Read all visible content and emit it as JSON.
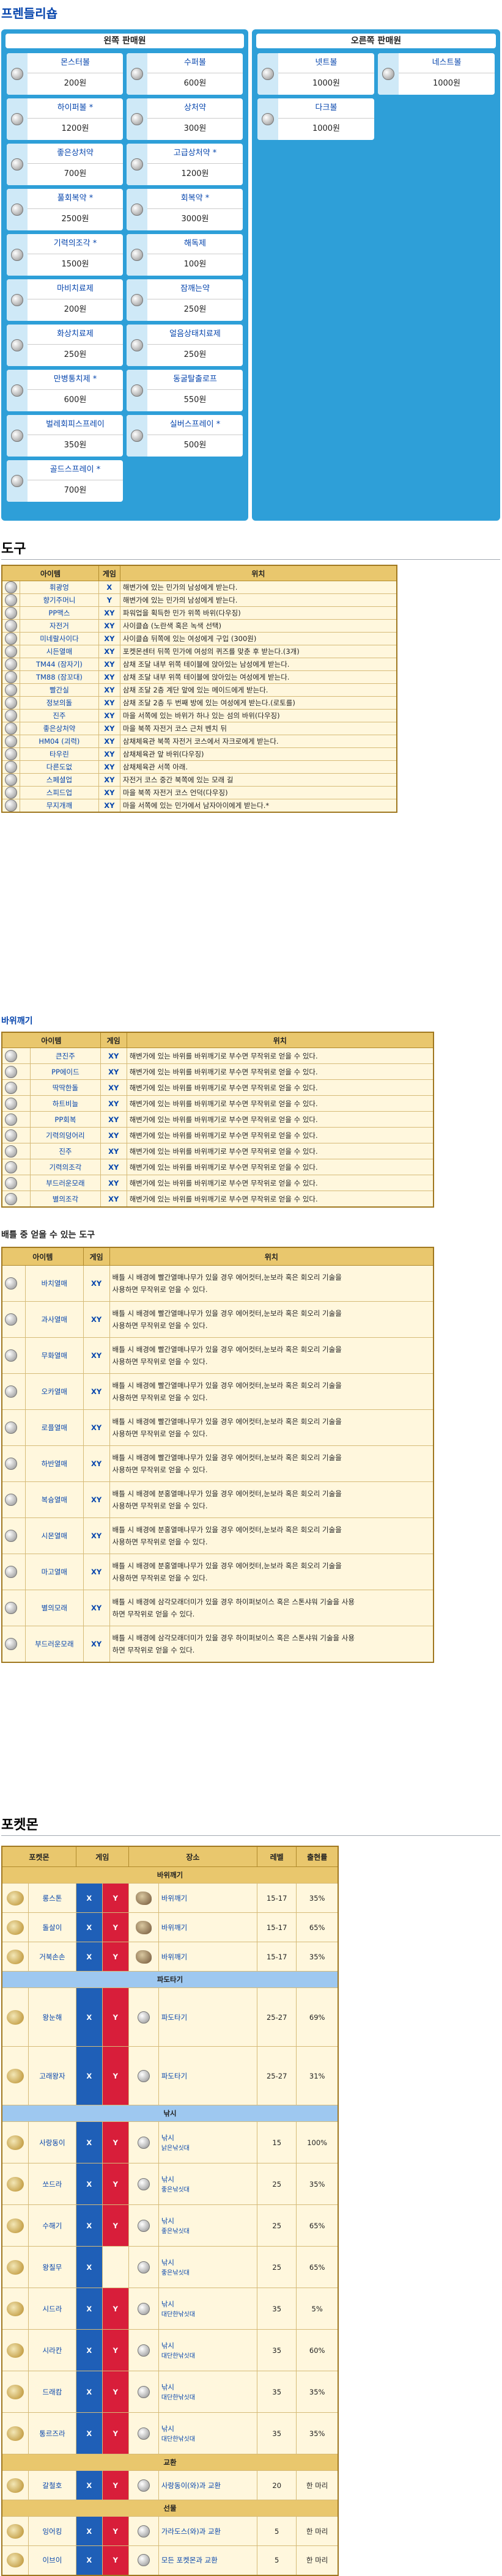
{
  "headings": {
    "shop": "프렌들리숍",
    "tools": "도구",
    "smash": "바위깨기",
    "berries": "배틀 중 얻을 수 있는 도구",
    "pokemon": "포켓몬"
  },
  "shop": {
    "left_title": "왼쪽 판매원",
    "right_title": "오른쪽 판매원",
    "left_items": [
      {
        "name": "몬스터볼",
        "price": "200원"
      },
      {
        "name": "수퍼볼",
        "price": "600원"
      },
      {
        "name": "하이퍼볼 *",
        "price": "1200원"
      },
      {
        "name": "상처약",
        "price": "300원"
      },
      {
        "name": "좋은상처약",
        "price": "700원"
      },
      {
        "name": "고급상처약 *",
        "price": "1200원"
      },
      {
        "name": "풀회복약 *",
        "price": "2500원"
      },
      {
        "name": "회복약 *",
        "price": "3000원"
      },
      {
        "name": "기력의조각 *",
        "price": "1500원"
      },
      {
        "name": "해독제",
        "price": "100원"
      },
      {
        "name": "마비치료제",
        "price": "200원"
      },
      {
        "name": "잠깨는약",
        "price": "250원"
      },
      {
        "name": "화상치료제",
        "price": "250원"
      },
      {
        "name": "얼음상태치료제",
        "price": "250원"
      },
      {
        "name": "만병통치제 *",
        "price": "600원"
      },
      {
        "name": "동굴탈출로프",
        "price": "550원"
      },
      {
        "name": "벌레회피스프레이",
        "price": "350원"
      },
      {
        "name": "실버스프레이 *",
        "price": "500원"
      },
      {
        "name": "골드스프레이 *",
        "price": "700원"
      }
    ],
    "right_items": [
      {
        "name": "넷트볼",
        "price": "1000원"
      },
      {
        "name": "네스트볼",
        "price": "1000원"
      },
      {
        "name": "다크볼",
        "price": "1000원"
      }
    ]
  },
  "tools": {
    "headers": [
      "아이템",
      "게임",
      "위치"
    ],
    "rows": [
      {
        "name": "휘광엉",
        "game": "X",
        "loc": "해변가에 있는 민가의 남성에게 받는다."
      },
      {
        "name": "향기주머니",
        "game": "Y",
        "loc": "해변가에 있는 민가의 남성에게 받는다."
      },
      {
        "name": "PP맥스",
        "game": "XY",
        "loc": "파워업을 획득한 민가 위쪽 바위(다우징)"
      },
      {
        "name": "자전거",
        "game": "XY",
        "loc": "사이클숍 (노란색 혹은 녹색 선택)"
      },
      {
        "name": "미네랄사이다",
        "game": "XY",
        "loc": "사이클숍 뒤쪽에 있는 여성에게 구입 (300원)"
      },
      {
        "name": "시든열매",
        "game": "XY",
        "loc": "포켓몬센터 뒤쪽 민가에 여성의 퀴즈를 맞춘 후 받는다.(3개)"
      },
      {
        "name": "TM44 (잠자기)",
        "game": "XY",
        "loc": "삼채 조달 내부 위쪽 테이블에 앉아있는 남성에게 받는다."
      },
      {
        "name": "TM88 (잠꼬대)",
        "game": "XY",
        "loc": "삼채 조달 내부 위쪽 테이블에 앉아있는 여성에게 받는다."
      },
      {
        "name": "빨간실",
        "game": "XY",
        "loc": "삼채 조달 2층 계단 앞에 있는 메이드에게 받는다."
      },
      {
        "name": "정보의돌",
        "game": "XY",
        "loc": "삼채 조달 2층 두 번째 방에 있는 여성에게 받는다.(로토를)"
      },
      {
        "name": "진주",
        "game": "XY",
        "loc": "마을 서쪽에 있는 바위가 하나 있는 섬의 바위(다우징)"
      },
      {
        "name": "좋은상처약",
        "game": "XY",
        "loc": "마을 북쪽 자전거 코스 근처 벤치 뒤"
      },
      {
        "name": "HM04 (괴력)",
        "game": "XY",
        "loc": "삼채체육관 북쪽 자전거 코스에서 자크로에게 받는다."
      },
      {
        "name": "타우린",
        "game": "XY",
        "loc": "삼채체육관 앞 바위(다우징)"
      },
      {
        "name": "다른도없",
        "game": "XY",
        "loc": "삼채체육관 서쪽 아래."
      },
      {
        "name": "스페셜업",
        "game": "XY",
        "loc": "자전거 코스 중간 북쪽에 있는 모래 길"
      },
      {
        "name": "스피드업",
        "game": "XY",
        "loc": "마을 북쪽 자전거 코스 언덕(다우징)"
      },
      {
        "name": "무지개깨",
        "game": "XY",
        "loc": "마을 서쪽에 있는 민가에서 남자아이에게 받는다.*"
      }
    ]
  },
  "smash": {
    "headers": [
      "아이템",
      "게임",
      "위치"
    ],
    "rows": [
      {
        "name": "큰진주",
        "game": "XY",
        "loc": "해변가에 있는 바위를 바위깨기로 부수면 무작위로 얻을 수 있다."
      },
      {
        "name": "PP에이드",
        "game": "XY",
        "loc": "해변가에 있는 바위를 바위깨기로 부수면 무작위로 얻을 수 있다."
      },
      {
        "name": "딱딱한돌",
        "game": "XY",
        "loc": "해변가에 있는 바위를 바위깨기로 부수면 무작위로 얻을 수 있다."
      },
      {
        "name": "하트비늘",
        "game": "XY",
        "loc": "해변가에 있는 바위를 바위깨기로 부수면 무작위로 얻을 수 있다."
      },
      {
        "name": "PP회복",
        "game": "XY",
        "loc": "해변가에 있는 바위를 바위깨기로 부수면 무작위로 얻을 수 있다."
      },
      {
        "name": "기력의덩어리",
        "game": "XY",
        "loc": "해변가에 있는 바위를 바위깨기로 부수면 무작위로 얻을 수 있다."
      },
      {
        "name": "진주",
        "game": "XY",
        "loc": "해변가에 있는 바위를 바위깨기로 부수면 무작위로 얻을 수 있다."
      },
      {
        "name": "기력의조각",
        "game": "XY",
        "loc": "해변가에 있는 바위를 바위깨기로 부수면 무작위로 얻을 수 있다."
      },
      {
        "name": "부드러운모래",
        "game": "XY",
        "loc": "해변가에 있는 바위를 바위깨기로 부수면 무작위로 얻을 수 있다."
      },
      {
        "name": "별의조각",
        "game": "XY",
        "loc": "해변가에 있는 바위를 바위깨기로 부수면 무작위로 얻을 수 있다."
      }
    ]
  },
  "berries": {
    "headers": [
      "아이템",
      "게임",
      "위치"
    ],
    "rows": [
      {
        "name": "바치열매",
        "game": "XY",
        "line1": "배틀 시 배경에 빨간열매나무가 있을 경우 에어컷터,눈보라 혹은 회오리 기술을",
        "line2": "사용하면 무작위로 얻을 수 있다."
      },
      {
        "name": "과사열매",
        "game": "XY",
        "line1": "배틀 시 배경에 빨간열매나무가 있을 경우 에어컷터,눈보라 혹은 회오리 기술을",
        "line2": "사용하면 무작위로 얻을 수 있다."
      },
      {
        "name": "무화열매",
        "game": "XY",
        "line1": "배틀 시 배경에 빨간열매나무가 있을 경우 에어컷터,눈보라 혹은 회오리 기술을",
        "line2": "사용하면 무작위로 얻을 수 있다."
      },
      {
        "name": "오카열매",
        "game": "XY",
        "line1": "배틀 시 배경에 빨간열매나무가 있을 경우 에어컷터,눈보라 혹은 회오리 기술을",
        "line2": "사용하면 무작위로 얻을 수 있다."
      },
      {
        "name": "로플열매",
        "game": "XY",
        "line1": "배틀 시 배경에 빨간열매나무가 있을 경우 에어컷터,눈보라 혹은 회오리 기술을",
        "line2": "사용하면 무작위로 얻을 수 있다."
      },
      {
        "name": "하반열매",
        "game": "XY",
        "line1": "배틀 시 배경에 빨간열매나무가 있을 경우 에어컷터,눈보라 혹은 회오리 기술을",
        "line2": "사용하면 무작위로 얻을 수 있다."
      },
      {
        "name": "복슝열매",
        "game": "XY",
        "line1": "배틀 시 배경에 분홍열매나무가 있을 경우 에어컷터,눈보라 혹은 회오리 기술을",
        "line2": "사용하면 무작위로 얻을 수 있다."
      },
      {
        "name": "시몬열매",
        "game": "XY",
        "line1": "배틀 시 배경에 분홍열매나무가 있을 경우 에어컷터,눈보라 혹은 회오리 기술을",
        "line2": "사용하면 무작위로 얻을 수 있다."
      },
      {
        "name": "마고열매",
        "game": "XY",
        "line1": "배틀 시 배경에 분홍열매나무가 있을 경우 에어컷터,눈보라 혹은 회오리 기술을",
        "line2": "사용하면 무작위로 얻을 수 있다."
      },
      {
        "name": "별의모래",
        "game": "XY",
        "line1": "배틀 시 배경에 삼각모래더미가 있을 경우 하이퍼보이스 혹은 스톤샤워 기술을 사용",
        "line2": "하면 무작위로 얻을 수 있다."
      },
      {
        "name": "부드러운모래",
        "game": "XY",
        "line1": "배틀 시 배경에 삼각모래더미가 있을 경우 하이퍼보이스 혹은 스톤샤워 기술을 사용",
        "line2": "하면 무작위로 얻을 수 있다."
      }
    ]
  },
  "pokemon": {
    "headers": [
      "포켓몬",
      "게임",
      "장소",
      "레벨",
      "출현률"
    ],
    "groups": [
      {
        "title": "바위깨기",
        "style": "grp",
        "rows": [
          {
            "name": "롱스톤",
            "x": "X",
            "y": "Y",
            "place": "바위깨기",
            "sub": "",
            "lv": "15-17",
            "rate": "35%"
          },
          {
            "name": "돌살이",
            "x": "X",
            "y": "Y",
            "place": "바위깨기",
            "sub": "",
            "lv": "15-17",
            "rate": "65%"
          },
          {
            "name": "거북손손",
            "x": "X",
            "y": "Y",
            "place": "바위깨기",
            "sub": "",
            "lv": "15-17",
            "rate": "35%"
          }
        ]
      },
      {
        "title": "파도타기",
        "style": "grp2",
        "rows": [
          {
            "name": "왕눈해",
            "x": "X",
            "y": "Y",
            "place": "파도타기",
            "sub": "",
            "lv": "25-27",
            "rate": "69%"
          },
          {
            "name": "고래왕자",
            "x": "X",
            "y": "Y",
            "place": "파도타기",
            "sub": "",
            "lv": "25-27",
            "rate": "31%"
          }
        ]
      },
      {
        "title": "낚시",
        "style": "grp2",
        "rows": [
          {
            "name": "사랑동이",
            "x": "X",
            "y": "Y",
            "place": "낚시",
            "sub": "낡은낚싯대",
            "lv": "15",
            "rate": "100%"
          },
          {
            "name": "쏘드라",
            "x": "X",
            "y": "Y",
            "place": "낚시",
            "sub": "좋은낚싯대",
            "lv": "25",
            "rate": "35%"
          },
          {
            "name": "수해기",
            "x": "X",
            "y": "Y",
            "place": "낚시",
            "sub": "좋은낚싯대",
            "lv": "25",
            "rate": "65%"
          },
          {
            "name": "왕칠무",
            "x": "X",
            "y": "",
            "place": "낚시",
            "sub": "좋은낚싯대",
            "lv": "25",
            "rate": "65%"
          },
          {
            "name": "시드라",
            "x": "X",
            "y": "Y",
            "place": "낚시",
            "sub": "대단한낚싯대",
            "lv": "35",
            "rate": "5%"
          },
          {
            "name": "시라칸",
            "x": "X",
            "y": "Y",
            "place": "낚시",
            "sub": "대단한낚싯대",
            "lv": "35",
            "rate": "60%"
          },
          {
            "name": "드래캄",
            "x": "X",
            "y": "Y",
            "place": "낚시",
            "sub": "대단한낚싯대",
            "lv": "35",
            "rate": "35%"
          },
          {
            "name": "통르즈라",
            "x": "X",
            "y": "Y",
            "place": "낚시",
            "sub": "대단한낚싯대",
            "lv": "35",
            "rate": "35%"
          }
        ]
      },
      {
        "title": "교환",
        "style": "grp",
        "rows": [
          {
            "name": "갈철호",
            "x": "X",
            "y": "Y",
            "place": "사랑동이(와)과 교환",
            "sub": "",
            "lv": "20",
            "rate": "한 마리"
          }
        ]
      },
      {
        "title": "선물",
        "style": "grp",
        "rows": [
          {
            "name": "잉어킹",
            "x": "X",
            "y": "Y",
            "place": "가라도스(와)과 교환",
            "sub": "",
            "lv": "5",
            "rate": "한 마리"
          },
          {
            "name": "이브이",
            "x": "X",
            "y": "Y",
            "place": "모든 포켓몬과 교환",
            "sub": "",
            "lv": "5",
            "rate": "한 마리"
          }
        ]
      }
    ]
  }
}
